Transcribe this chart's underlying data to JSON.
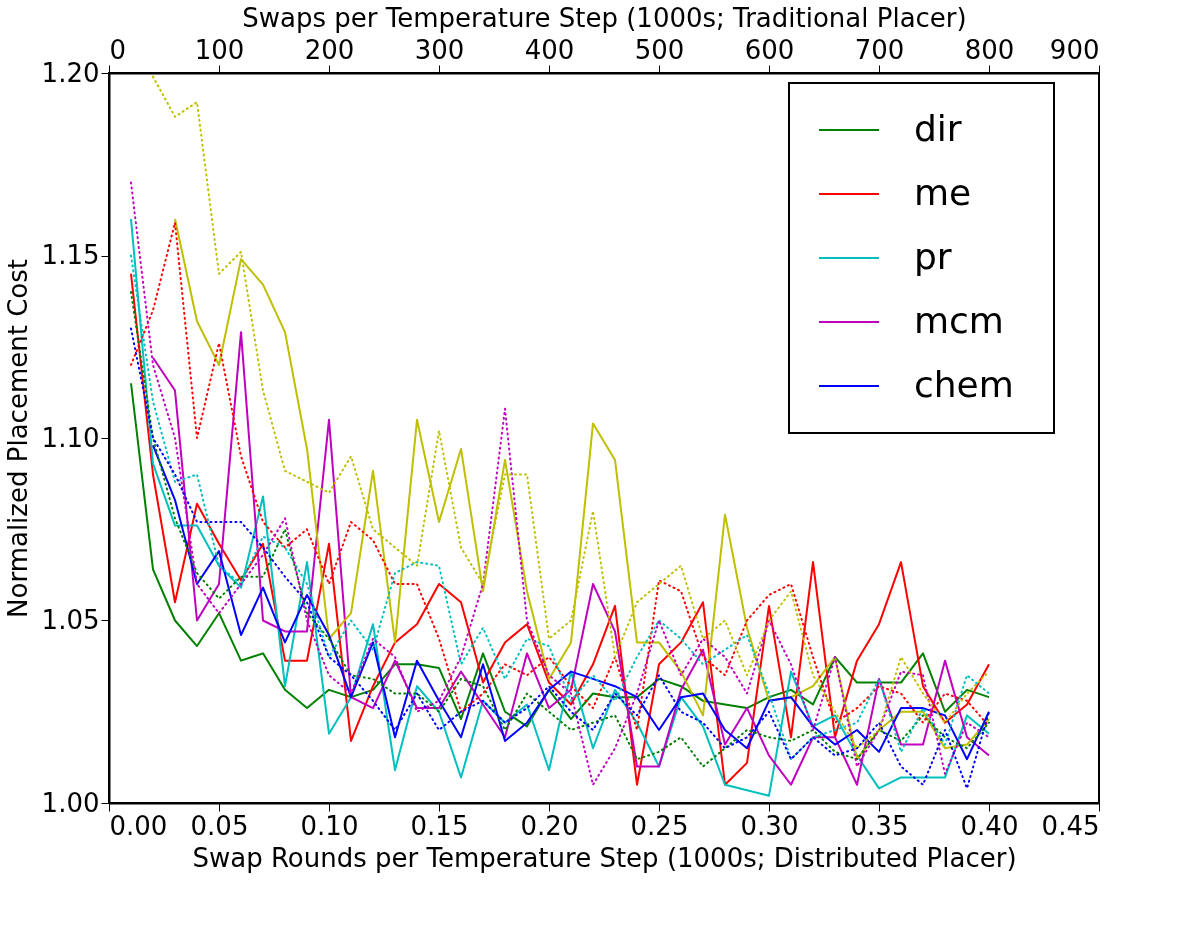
{
  "chart_data": {
    "type": "line",
    "xlabel": "Swap Rounds per Temperature Step (1000s; Distributed Placer)",
    "x2label": "Swaps per Temperature Step (1000s; Traditional Placer)",
    "ylabel": "Normalized Placement Cost",
    "xlim": [
      0,
      0.45
    ],
    "xticks": [
      {
        "value": 0,
        "label": "0.00"
      },
      0.05,
      {
        "value": 0.1,
        "label": "0.10"
      },
      0.15,
      {
        "value": 0.2,
        "label": "0.20"
      },
      0.25,
      {
        "value": 0.3,
        "label": "0.30"
      },
      0.35,
      {
        "value": 0.4,
        "label": "0.40"
      },
      0.45
    ],
    "x2lim": [
      0,
      900
    ],
    "x2ticks": [
      0,
      100,
      200,
      300,
      400,
      500,
      600,
      700,
      800,
      900
    ],
    "ylim": [
      1.0,
      1.2
    ],
    "yticks": [
      {
        "value": 1.0,
        "label": "1.00"
      },
      1.05,
      {
        "value": 1.1,
        "label": "1.10"
      },
      1.15,
      {
        "value": 1.2,
        "label": "1.20"
      }
    ],
    "legend": "top right",
    "series": [
      {
        "name": "dir",
        "color": "#008000",
        "line_style": "solid",
        "x": [
          0.01,
          0.02,
          0.03,
          0.04,
          0.05,
          0.06,
          0.07,
          0.08,
          0.09,
          0.1,
          0.11,
          0.12,
          0.13,
          0.14,
          0.15,
          0.16,
          0.17,
          0.18,
          0.19,
          0.2,
          0.21,
          0.22,
          0.23,
          0.24,
          0.25,
          0.26,
          0.27,
          0.28,
          0.29,
          0.3,
          0.31,
          0.32,
          0.33,
          0.34,
          0.35,
          0.36,
          0.37,
          0.38,
          0.39,
          0.4
        ],
        "values": [
          1.115,
          1.064,
          1.05,
          1.043,
          1.052,
          1.039,
          1.041,
          1.031,
          1.026,
          1.031,
          1.029,
          1.031,
          1.038,
          1.038,
          1.037,
          1.023,
          1.041,
          1.025,
          1.021,
          1.031,
          1.023,
          1.03,
          1.029,
          1.029,
          1.034,
          1.032,
          1.028,
          1.027,
          1.026,
          1.029,
          1.031,
          1.027,
          1.04,
          1.033,
          1.033,
          1.033,
          1.041,
          1.025,
          1.031,
          1.029
        ]
      },
      {
        "name": "me",
        "color": "#ff0000",
        "line_style": "solid",
        "x": [
          0.01,
          0.02,
          0.03,
          0.04,
          0.05,
          0.06,
          0.07,
          0.08,
          0.09,
          0.1,
          0.11,
          0.12,
          0.13,
          0.14,
          0.15,
          0.16,
          0.17,
          0.18,
          0.19,
          0.2,
          0.21,
          0.22,
          0.23,
          0.24,
          0.25,
          0.26,
          0.27,
          0.28,
          0.29,
          0.3,
          0.31,
          0.32,
          0.33,
          0.34,
          0.35,
          0.36,
          0.37,
          0.38,
          0.39,
          0.4
        ],
        "values": [
          1.145,
          1.09,
          1.055,
          1.082,
          1.071,
          1.061,
          1.071,
          1.039,
          1.039,
          1.071,
          1.017,
          1.032,
          1.044,
          1.049,
          1.06,
          1.055,
          1.033,
          1.044,
          1.049,
          1.033,
          1.027,
          1.038,
          1.054,
          1.005,
          1.038,
          1.044,
          1.055,
          1.005,
          1.011,
          1.054,
          1.018,
          1.066,
          1.018,
          1.039,
          1.049,
          1.066,
          1.032,
          1.022,
          1.027,
          1.038
        ]
      },
      {
        "name": "pr",
        "color": "#00bfbf",
        "line_style": "solid",
        "x": [
          0.01,
          0.02,
          0.03,
          0.04,
          0.05,
          0.06,
          0.07,
          0.08,
          0.09,
          0.1,
          0.11,
          0.12,
          0.13,
          0.14,
          0.15,
          0.16,
          0.17,
          0.18,
          0.19,
          0.2,
          0.21,
          0.22,
          0.23,
          0.24,
          0.25,
          0.26,
          0.27,
          0.28,
          0.3,
          0.31,
          0.32,
          0.33,
          0.34,
          0.35,
          0.36,
          0.37,
          0.38,
          0.39,
          0.4
        ],
        "values": [
          1.16,
          1.093,
          1.076,
          1.076,
          1.065,
          1.059,
          1.084,
          1.032,
          1.066,
          1.019,
          1.029,
          1.049,
          1.009,
          1.032,
          1.025,
          1.007,
          1.028,
          1.022,
          1.027,
          1.009,
          1.036,
          1.015,
          1.031,
          1.022,
          1.01,
          1.029,
          1.021,
          1.005,
          1.002,
          1.036,
          1.021,
          1.024,
          1.013,
          1.004,
          1.007,
          1.007,
          1.007,
          1.024,
          1.019
        ]
      },
      {
        "name": "mcm",
        "color": "#bf00bf",
        "line_style": "solid",
        "x": [
          0.02,
          0.03,
          0.04,
          0.05,
          0.06,
          0.07,
          0.08,
          0.09,
          0.1,
          0.11,
          0.12,
          0.13,
          0.14,
          0.15,
          0.16,
          0.17,
          0.18,
          0.19,
          0.2,
          0.21,
          0.22,
          0.23,
          0.24,
          0.25,
          0.26,
          0.27,
          0.28,
          0.29,
          0.3,
          0.31,
          0.32,
          0.33,
          0.34,
          0.35,
          0.36,
          0.37,
          0.38,
          0.39,
          0.4
        ],
        "values": [
          1.122,
          1.113,
          1.05,
          1.06,
          1.129,
          1.05,
          1.047,
          1.047,
          1.105,
          1.029,
          1.026,
          1.039,
          1.026,
          1.026,
          1.036,
          1.027,
          1.018,
          1.041,
          1.026,
          1.031,
          1.06,
          1.047,
          1.01,
          1.01,
          1.031,
          1.042,
          1.016,
          1.026,
          1.013,
          1.005,
          1.018,
          1.018,
          1.005,
          1.034,
          1.016,
          1.016,
          1.039,
          1.018,
          1.013
        ]
      },
      {
        "color": "#bfbf00",
        "line_style": "solid",
        "x": [
          0.03,
          0.04,
          0.05,
          0.06,
          0.07,
          0.08,
          0.09,
          0.1,
          0.11,
          0.12,
          0.13,
          0.14,
          0.15,
          0.16,
          0.17,
          0.18,
          0.19,
          0.2,
          0.21,
          0.22,
          0.23,
          0.24,
          0.25,
          0.26,
          0.27,
          0.28,
          0.29,
          0.3,
          0.31,
          0.32,
          0.33,
          0.34,
          0.35,
          0.36,
          0.37,
          0.38,
          0.39,
          0.4
        ],
        "values": [
          1.16,
          1.132,
          1.12,
          1.149,
          1.142,
          1.129,
          1.097,
          1.045,
          1.052,
          1.091,
          1.044,
          1.105,
          1.077,
          1.097,
          1.058,
          1.094,
          1.058,
          1.034,
          1.044,
          1.104,
          1.094,
          1.044,
          1.044,
          1.036,
          1.024,
          1.079,
          1.048,
          1.028,
          1.029,
          1.032,
          1.04,
          1.012,
          1.02,
          1.025,
          1.025,
          1.015,
          1.016,
          1.023
        ]
      },
      {
        "name": "chem",
        "color": "#0000ff",
        "line_style": "solid",
        "x": [
          0.02,
          0.03,
          0.04,
          0.05,
          0.06,
          0.07,
          0.08,
          0.09,
          0.1,
          0.11,
          0.12,
          0.13,
          0.14,
          0.15,
          0.16,
          0.17,
          0.18,
          0.19,
          0.2,
          0.21,
          0.22,
          0.23,
          0.24,
          0.25,
          0.26,
          0.27,
          0.28,
          0.29,
          0.3,
          0.31,
          0.32,
          0.33,
          0.34,
          0.35,
          0.36,
          0.37,
          0.38,
          0.39,
          0.4
        ],
        "values": [
          1.098,
          1.083,
          1.06,
          1.069,
          1.046,
          1.059,
          1.044,
          1.057,
          1.046,
          1.029,
          1.044,
          1.018,
          1.039,
          1.028,
          1.018,
          1.038,
          1.017,
          1.022,
          1.031,
          1.036,
          1.034,
          1.032,
          1.029,
          1.02,
          1.029,
          1.03,
          1.02,
          1.015,
          1.028,
          1.029,
          1.021,
          1.016,
          1.02,
          1.014,
          1.026,
          1.026,
          1.024,
          1.012,
          1.025
        ]
      },
      {
        "color": "#008000",
        "line_style": "dotted",
        "axis": "x2",
        "x": [
          20,
          40,
          60,
          80,
          100,
          120,
          140,
          160,
          180,
          200,
          220,
          240,
          260,
          280,
          300,
          320,
          340,
          360,
          380,
          400,
          420,
          440,
          460,
          480,
          500,
          520,
          540,
          560,
          580,
          600,
          620,
          640,
          660,
          680,
          700,
          720,
          740,
          760,
          780,
          800
        ],
        "values": [
          1.14,
          1.1,
          1.078,
          1.063,
          1.056,
          1.062,
          1.062,
          1.075,
          1.052,
          1.045,
          1.035,
          1.034,
          1.03,
          1.03,
          1.025,
          1.034,
          1.032,
          1.02,
          1.03,
          1.025,
          1.02,
          1.022,
          1.024,
          1.012,
          1.014,
          1.018,
          1.01,
          1.015,
          1.02,
          1.018,
          1.017,
          1.02,
          1.014,
          1.012,
          1.02,
          1.017,
          1.024,
          1.018,
          1.015,
          1.022
        ]
      },
      {
        "color": "#ff0000",
        "line_style": "dotted",
        "axis": "x2",
        "x": [
          20,
          40,
          60,
          80,
          100,
          120,
          140,
          160,
          180,
          200,
          220,
          240,
          260,
          280,
          300,
          320,
          340,
          360,
          380,
          400,
          420,
          440,
          460,
          480,
          500,
          520,
          540,
          560,
          580,
          600,
          620,
          640,
          660,
          680,
          700,
          720,
          740,
          760,
          780,
          800
        ],
        "values": [
          1.12,
          1.135,
          1.159,
          1.1,
          1.126,
          1.095,
          1.077,
          1.07,
          1.075,
          1.06,
          1.077,
          1.072,
          1.06,
          1.06,
          1.045,
          1.025,
          1.03,
          1.038,
          1.035,
          1.04,
          1.032,
          1.026,
          1.04,
          1.02,
          1.061,
          1.058,
          1.04,
          1.035,
          1.05,
          1.057,
          1.06,
          1.04,
          1.022,
          1.026,
          1.032,
          1.03,
          1.022,
          1.03,
          1.028,
          1.021
        ]
      },
      {
        "color": "#00bfbf",
        "line_style": "dotted",
        "axis": "x2",
        "x": [
          20,
          40,
          60,
          80,
          100,
          120,
          140,
          160,
          180,
          200,
          220,
          240,
          260,
          280,
          300,
          320,
          340,
          360,
          380,
          400,
          420,
          440,
          460,
          480,
          500,
          520,
          540,
          560,
          580,
          600,
          620,
          640,
          660,
          680,
          700,
          720,
          740,
          760,
          780,
          800
        ],
        "values": [
          1.15,
          1.11,
          1.088,
          1.09,
          1.065,
          1.06,
          1.073,
          1.07,
          1.06,
          1.04,
          1.05,
          1.042,
          1.063,
          1.066,
          1.065,
          1.038,
          1.048,
          1.034,
          1.045,
          1.043,
          1.028,
          1.035,
          1.028,
          1.04,
          1.05,
          1.045,
          1.038,
          1.042,
          1.046,
          1.03,
          1.012,
          1.018,
          1.02,
          1.022,
          1.034,
          1.014,
          1.026,
          1.016,
          1.035,
          1.03
        ]
      },
      {
        "color": "#bf00bf",
        "line_style": "dotted",
        "axis": "x2",
        "x": [
          20,
          40,
          60,
          80,
          100,
          120,
          140,
          160,
          180,
          200,
          220,
          240,
          260,
          280,
          300,
          320,
          340,
          360,
          380,
          400,
          420,
          440,
          460,
          480,
          500,
          520,
          540,
          560,
          580,
          600,
          620,
          640,
          660,
          680,
          700,
          720,
          740,
          760,
          780,
          800
        ],
        "values": [
          1.17,
          1.12,
          1.1,
          1.06,
          1.052,
          1.06,
          1.068,
          1.078,
          1.05,
          1.035,
          1.03,
          1.045,
          1.04,
          1.025,
          1.028,
          1.04,
          1.06,
          1.108,
          1.05,
          1.035,
          1.03,
          1.005,
          1.015,
          1.03,
          1.05,
          1.035,
          1.045,
          1.04,
          1.03,
          1.05,
          1.038,
          1.02,
          1.04,
          1.01,
          1.02,
          1.036,
          1.035,
          1.008,
          1.022,
          1.018
        ]
      },
      {
        "color": "#bfbf00",
        "line_style": "dotted",
        "axis": "x2",
        "x": [
          40,
          60,
          80,
          100,
          120,
          140,
          160,
          180,
          200,
          220,
          240,
          260,
          280,
          300,
          320,
          340,
          360,
          380,
          400,
          420,
          440,
          460,
          480,
          500,
          520,
          540,
          560,
          580,
          600,
          620,
          640,
          660,
          680,
          700,
          720,
          740,
          760,
          780,
          800
        ],
        "values": [
          1.199,
          1.188,
          1.192,
          1.145,
          1.151,
          1.113,
          1.091,
          1.088,
          1.085,
          1.095,
          1.075,
          1.07,
          1.065,
          1.102,
          1.07,
          1.06,
          1.09,
          1.09,
          1.045,
          1.05,
          1.08,
          1.04,
          1.055,
          1.06,
          1.065,
          1.045,
          1.05,
          1.035,
          1.05,
          1.058,
          1.035,
          1.025,
          1.015,
          1.02,
          1.04,
          1.03,
          1.022,
          1.03,
          1.036
        ]
      },
      {
        "color": "#0000ff",
        "line_style": "dotted",
        "axis": "x2",
        "x": [
          20,
          40,
          60,
          80,
          100,
          120,
          140,
          160,
          180,
          200,
          220,
          240,
          260,
          280,
          300,
          320,
          340,
          360,
          380,
          400,
          420,
          440,
          460,
          480,
          500,
          520,
          540,
          560,
          580,
          600,
          620,
          640,
          660,
          680,
          700,
          720,
          740,
          760,
          780,
          800
        ],
        "values": [
          1.13,
          1.1,
          1.09,
          1.077,
          1.077,
          1.077,
          1.07,
          1.062,
          1.055,
          1.04,
          1.035,
          1.028,
          1.02,
          1.03,
          1.02,
          1.025,
          1.028,
          1.022,
          1.026,
          1.032,
          1.025,
          1.02,
          1.03,
          1.024,
          1.035,
          1.025,
          1.022,
          1.015,
          1.018,
          1.025,
          1.012,
          1.018,
          1.013,
          1.015,
          1.022,
          1.01,
          1.005,
          1.02,
          1.004,
          1.025
        ]
      }
    ]
  }
}
